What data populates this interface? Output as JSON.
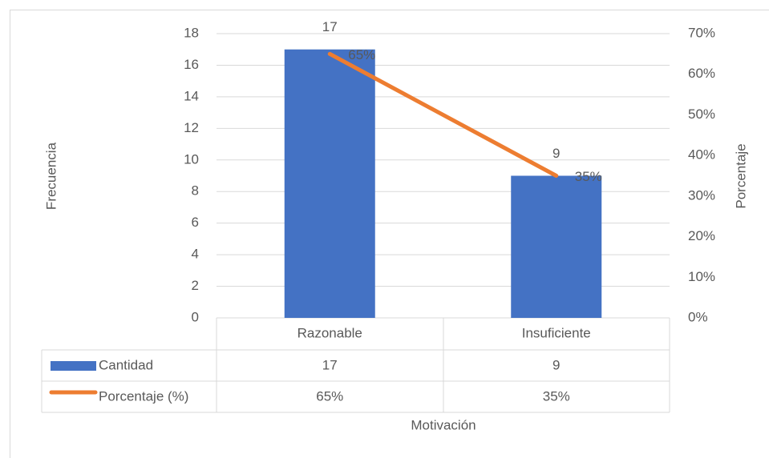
{
  "chart_data": {
    "type": "bar-line",
    "categories": [
      "Razonable",
      "Insuficiente"
    ],
    "series": [
      {
        "name": "Cantidad",
        "color": "#4472c4",
        "values": [
          17,
          9
        ]
      },
      {
        "name": "Porcentaje (%)",
        "color": "#ed7d31",
        "values": [
          65,
          35
        ],
        "value_labels": [
          "65%",
          "35%"
        ],
        "axis": "y2"
      }
    ],
    "ylabel": "Frecuencia",
    "y2label": "Porcentaje",
    "xlabel": "Motivación",
    "ylim": [
      0,
      18
    ],
    "yticks": [
      0,
      2,
      4,
      6,
      8,
      10,
      12,
      14,
      16,
      18
    ],
    "y2lim": [
      0,
      70
    ],
    "y2ticks": [
      {
        "value": 0,
        "label": "0%"
      },
      {
        "value": 10,
        "label": "10%"
      },
      {
        "value": 20,
        "label": "20%"
      },
      {
        "value": 30,
        "label": "30%"
      },
      {
        "value": 40,
        "label": "40%"
      },
      {
        "value": 50,
        "label": "50%"
      },
      {
        "value": 60,
        "label": "60%"
      },
      {
        "value": 70,
        "label": "70%"
      }
    ],
    "grid": true
  }
}
